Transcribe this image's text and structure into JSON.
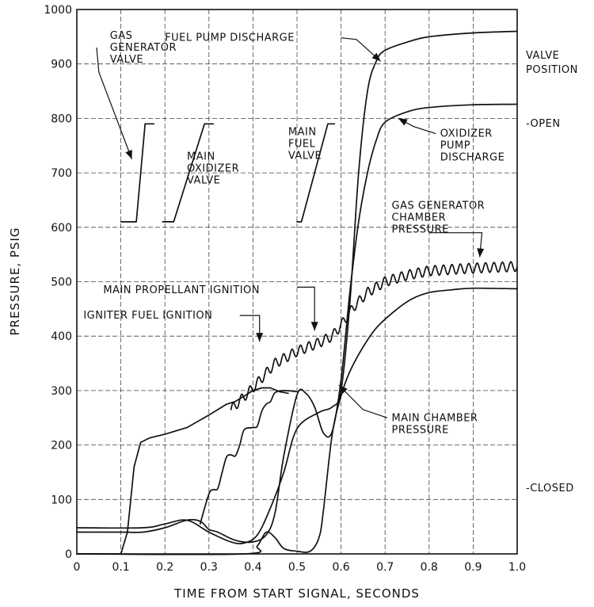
{
  "chart_data": {
    "type": "line",
    "xlabel": "TIME FROM START SIGNAL, SECONDS",
    "ylabel": "PRESSURE, PSIG",
    "xlim": [
      0,
      1.0
    ],
    "ylim": [
      0,
      1000
    ],
    "grid": true,
    "x_ticks": [
      0,
      0.1,
      0.2,
      0.3,
      0.4,
      0.5,
      0.6,
      0.7,
      0.8,
      0.9,
      1.0
    ],
    "x_tick_labels": [
      "0",
      "0.1",
      "0.2",
      "0.3",
      "0.4",
      "0.5",
      "0.6",
      "0.7",
      "0.8",
      "0.9",
      "1.0"
    ],
    "y_ticks": [
      0,
      100,
      200,
      300,
      400,
      500,
      600,
      700,
      800,
      900,
      1000
    ],
    "y_tick_labels": [
      "0",
      "100",
      "200",
      "300",
      "400",
      "500",
      "600",
      "700",
      "800",
      "900",
      "1000"
    ],
    "valve_axis": {
      "title": "VALVE POSITION",
      "open_label": "-OPEN",
      "closed_label": "-CLOSED"
    },
    "series": [
      {
        "key": "fuel_pump",
        "style": "smooth",
        "points": [
          [
            0,
            48
          ],
          [
            0.15,
            48
          ],
          [
            0.2,
            55
          ],
          [
            0.25,
            62
          ],
          [
            0.3,
            40
          ],
          [
            0.35,
            22
          ],
          [
            0.38,
            20
          ],
          [
            0.41,
            35
          ],
          [
            0.44,
            85
          ],
          [
            0.47,
            150
          ],
          [
            0.5,
            230
          ],
          [
            0.55,
            260
          ],
          [
            0.58,
            270
          ],
          [
            0.6,
            300
          ],
          [
            0.62,
            460
          ],
          [
            0.64,
            700
          ],
          [
            0.66,
            850
          ],
          [
            0.68,
            905
          ],
          [
            0.7,
            925
          ],
          [
            0.75,
            940
          ],
          [
            0.8,
            950
          ],
          [
            0.9,
            957
          ],
          [
            1.0,
            960
          ]
        ]
      },
      {
        "key": "ox_pump",
        "style": "smooth",
        "points": [
          [
            0,
            40
          ],
          [
            0.1,
            40
          ],
          [
            0.15,
            40
          ],
          [
            0.2,
            48
          ],
          [
            0.25,
            62
          ],
          [
            0.28,
            60
          ],
          [
            0.3,
            45
          ],
          [
            0.32,
            40
          ],
          [
            0.36,
            25
          ],
          [
            0.4,
            22
          ],
          [
            0.43,
            35
          ],
          [
            0.45,
            75
          ],
          [
            0.47,
            180
          ],
          [
            0.5,
            292
          ],
          [
            0.52,
            295
          ],
          [
            0.54,
            270
          ],
          [
            0.56,
            222
          ],
          [
            0.58,
            225
          ],
          [
            0.6,
            320
          ],
          [
            0.62,
            480
          ],
          [
            0.64,
            610
          ],
          [
            0.66,
            700
          ],
          [
            0.68,
            760
          ],
          [
            0.7,
            793
          ],
          [
            0.75,
            812
          ],
          [
            0.8,
            820
          ],
          [
            0.9,
            825
          ],
          [
            1.0,
            826
          ]
        ]
      },
      {
        "key": "main_chamber",
        "style": "smooth",
        "points": [
          [
            0,
            0
          ],
          [
            0.38,
            0
          ],
          [
            0.41,
            15
          ],
          [
            0.43,
            40
          ],
          [
            0.45,
            30
          ],
          [
            0.47,
            10
          ],
          [
            0.5,
            5
          ],
          [
            0.53,
            5
          ],
          [
            0.55,
            30
          ],
          [
            0.56,
            80
          ],
          [
            0.58,
            220
          ],
          [
            0.6,
            290
          ],
          [
            0.62,
            335
          ],
          [
            0.65,
            380
          ],
          [
            0.68,
            415
          ],
          [
            0.72,
            445
          ],
          [
            0.76,
            468
          ],
          [
            0.8,
            480
          ],
          [
            0.85,
            485
          ],
          [
            0.9,
            488
          ],
          [
            1.0,
            487
          ]
        ]
      },
      {
        "key": "gg_chamber",
        "style": "linear",
        "points": [
          [
            0,
            0
          ],
          [
            0.1,
            0
          ],
          [
            0.115,
            40
          ],
          [
            0.13,
            160
          ],
          [
            0.145,
            205
          ],
          [
            0.165,
            213
          ],
          [
            0.2,
            220
          ],
          [
            0.25,
            232
          ],
          [
            0.3,
            255
          ],
          [
            0.33,
            270
          ],
          [
            0.34,
            275
          ],
          [
            0.36,
            280
          ],
          [
            0.38,
            290
          ],
          [
            0.4,
            300
          ],
          [
            0.42,
            305
          ],
          [
            0.44,
            305
          ],
          [
            0.46,
            298
          ],
          [
            0.48,
            295
          ]
        ]
      },
      {
        "key": "gg_chamber_osc",
        "style": "oscillating",
        "points": [
          [
            0.35,
            265
          ],
          [
            0.4,
            305
          ],
          [
            0.45,
            350
          ],
          [
            0.5,
            372
          ],
          [
            0.55,
            388
          ],
          [
            0.58,
            400
          ],
          [
            0.6,
            420
          ],
          [
            0.63,
            455
          ],
          [
            0.66,
            480
          ],
          [
            0.7,
            500
          ],
          [
            0.75,
            512
          ],
          [
            0.8,
            520
          ],
          [
            0.9,
            525
          ],
          [
            1.0,
            528
          ]
        ],
        "amplitude": 9,
        "cycles": 34
      },
      {
        "key": "gg_stairs",
        "style": "smooth",
        "points": [
          [
            0.28,
            55
          ],
          [
            0.3,
            110
          ],
          [
            0.31,
            118
          ],
          [
            0.32,
            120
          ],
          [
            0.33,
            150
          ],
          [
            0.34,
            178
          ],
          [
            0.35,
            182
          ],
          [
            0.36,
            180
          ],
          [
            0.37,
            200
          ],
          [
            0.38,
            228
          ],
          [
            0.4,
            232
          ],
          [
            0.41,
            235
          ],
          [
            0.42,
            262
          ],
          [
            0.43,
            275
          ],
          [
            0.44,
            280
          ],
          [
            0.45,
            296
          ],
          [
            0.47,
            300
          ],
          [
            0.5,
            298
          ]
        ]
      },
      {
        "key": "gg_valve",
        "style": "linear",
        "points": [
          [
            0.1,
            610
          ],
          [
            0.135,
            610
          ],
          [
            0.155,
            790
          ],
          [
            0.175,
            790
          ]
        ]
      },
      {
        "key": "ox_valve",
        "style": "linear",
        "points": [
          [
            0.195,
            610
          ],
          [
            0.22,
            610
          ],
          [
            0.29,
            790
          ],
          [
            0.31,
            790
          ]
        ]
      },
      {
        "key": "fuel_valve",
        "style": "linear",
        "points": [
          [
            0.5,
            610
          ],
          [
            0.51,
            610
          ],
          [
            0.57,
            790
          ],
          [
            0.585,
            790
          ]
        ]
      }
    ],
    "annotations": [
      {
        "key": "fuel_pump",
        "lines": [
          "FUEL PUMP DISCHARGE"
        ],
        "label_at": [
          0.2,
          948
        ],
        "arrow": [
          [
            0.6,
            948
          ],
          [
            0.635,
            945
          ],
          [
            0.69,
            905
          ]
        ]
      },
      {
        "key": "gg_valve",
        "lines": [
          "GAS",
          "GENERATOR",
          "VALVE"
        ],
        "label_at": [
          0.075,
          952
        ],
        "arrow": [
          [
            0.045,
            930
          ],
          [
            0.05,
            885
          ],
          [
            0.125,
            725
          ]
        ]
      },
      {
        "key": "ox_valve",
        "lines": [
          "MAIN",
          "OXIDIZER",
          "VALVE"
        ],
        "label_at": [
          0.25,
          730
        ],
        "arrow": null
      },
      {
        "key": "fuel_valve",
        "lines": [
          "MAIN",
          "FUEL",
          "VALVE"
        ],
        "label_at": [
          0.48,
          775
        ],
        "arrow": null
      },
      {
        "key": "ox_pump",
        "lines": [
          "OXIDIZER",
          "PUMP",
          "DISCHARGE"
        ],
        "label_at": [
          0.825,
          772
        ],
        "arrow": [
          [
            0.815,
            772
          ],
          [
            0.765,
            785
          ],
          [
            0.73,
            800
          ]
        ]
      },
      {
        "key": "gg_chamber",
        "lines": [
          "GAS GENERATOR",
          "CHAMBER",
          "PRESSURE"
        ],
        "label_at": [
          0.715,
          640
        ],
        "arrow": [
          [
            0.8,
            590
          ],
          [
            0.92,
            590
          ],
          [
            0.915,
            545
          ]
        ]
      },
      {
        "key": "main_prop",
        "lines": [
          "MAIN PROPELLANT IGNITION"
        ],
        "label_at": [
          0.06,
          485
        ],
        "arrow": [
          [
            0.5,
            490
          ],
          [
            0.54,
            490
          ],
          [
            0.54,
            410
          ]
        ]
      },
      {
        "key": "igniter",
        "lines": [
          "IGNITER FUEL IGNITION"
        ],
        "label_at": [
          0.015,
          438
        ],
        "arrow": [
          [
            0.37,
            438
          ],
          [
            0.415,
            438
          ],
          [
            0.415,
            390
          ]
        ]
      },
      {
        "key": "main_chamber",
        "lines": [
          "MAIN CHAMBER",
          "PRESSURE"
        ],
        "label_at": [
          0.715,
          250
        ],
        "arrow": [
          [
            0.705,
            250
          ],
          [
            0.65,
            265
          ],
          [
            0.595,
            310
          ]
        ]
      }
    ]
  }
}
